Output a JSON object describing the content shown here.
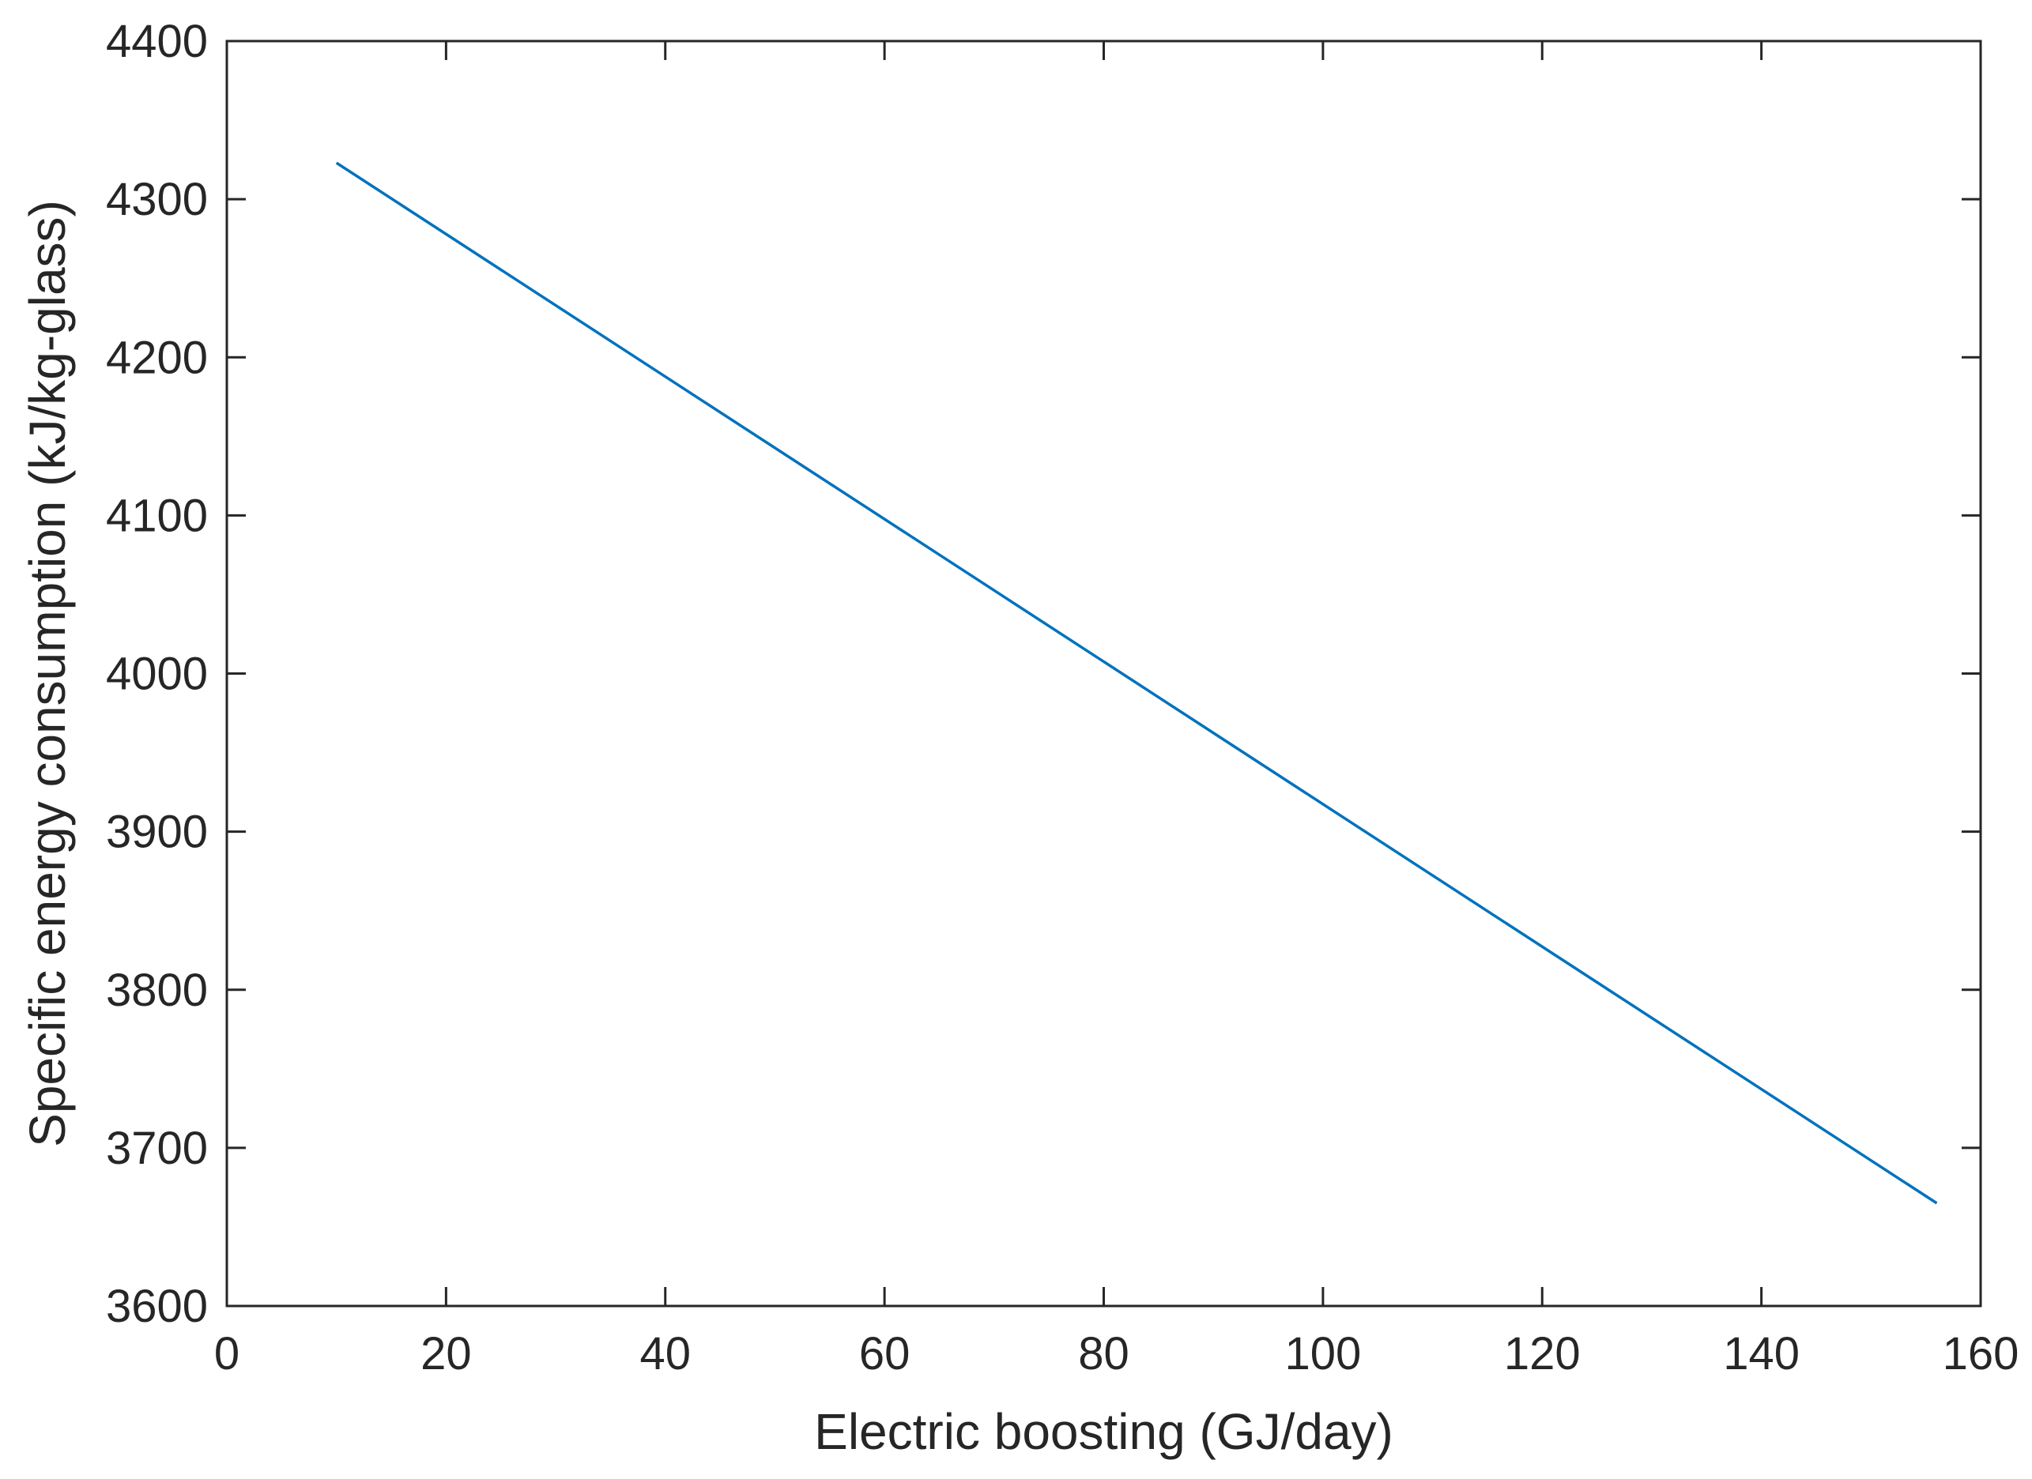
{
  "chart_data": {
    "type": "line",
    "title": "",
    "xlabel": "Electric boosting (GJ/day)",
    "ylabel": "Specific energy consumption (kJ/kg-glass)",
    "xlim": [
      0,
      160
    ],
    "ylim": [
      3600,
      4400
    ],
    "xticks": [
      0,
      20,
      40,
      60,
      80,
      100,
      120,
      140,
      160
    ],
    "yticks": [
      3600,
      3700,
      3800,
      3900,
      4000,
      4100,
      4200,
      4300,
      4400
    ],
    "grid": false,
    "series": [
      {
        "color": "#0072BD",
        "x": [
          10,
          156
        ],
        "y": [
          4323,
          3665
        ]
      }
    ]
  }
}
